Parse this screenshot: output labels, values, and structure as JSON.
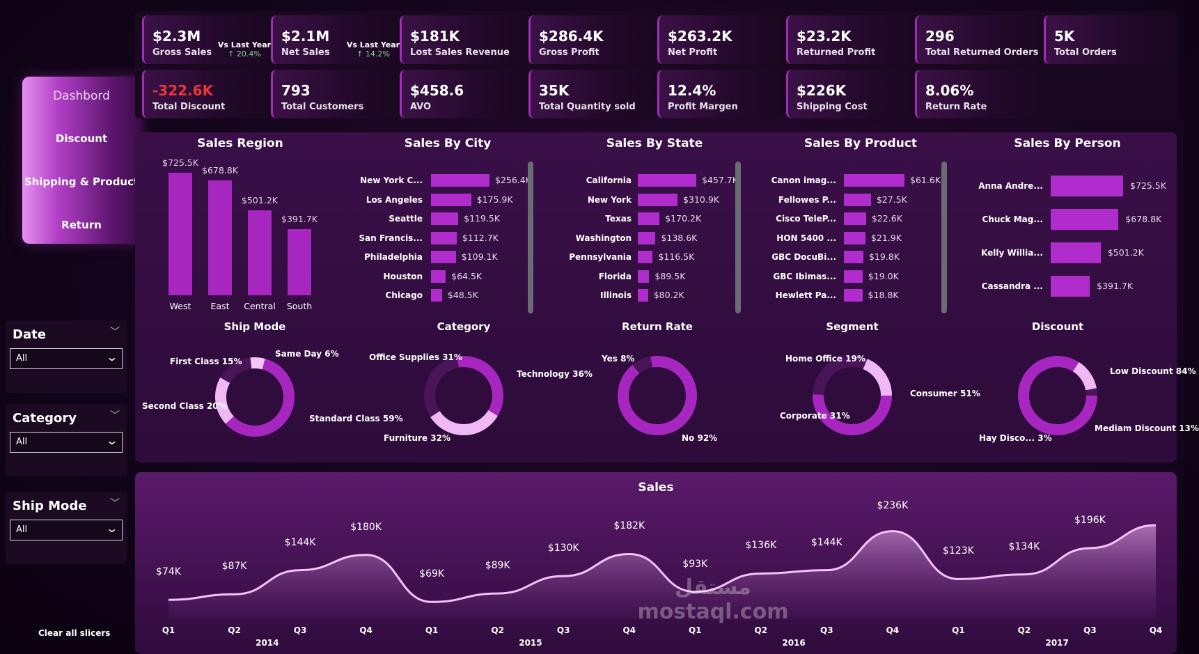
{
  "nav": {
    "items": [
      "Dashbord",
      "Discount",
      "Shipping & Product",
      "Return"
    ]
  },
  "slicers": [
    {
      "title": "Date",
      "value": "All"
    },
    {
      "title": "Category",
      "value": "All"
    },
    {
      "title": "Ship Mode",
      "value": "All"
    }
  ],
  "clear_label": "Clear all slicers",
  "kpis": [
    {
      "value": "$2.3M",
      "label": "Gross Sales",
      "cmp_label": "Vs Last Year",
      "cmp_change": "↑ 20.4%"
    },
    {
      "value": "$2.1M",
      "label": "Net Sales",
      "cmp_label": "Vs Last Year",
      "cmp_change": "↑ 14.2%"
    },
    {
      "value": "$181K",
      "label": "Lost Sales Revenue"
    },
    {
      "value": "$286.4K",
      "label": "Gross Profit"
    },
    {
      "value": "$263.2K",
      "label": "Net Profit"
    },
    {
      "value": "$23.2K",
      "label": "Returned Profit"
    },
    {
      "value": "296",
      "label": "Total Returned Orders"
    },
    {
      "value": "5K",
      "label": "Total Orders"
    },
    {
      "value": "-322.6K",
      "label": "Total Discount",
      "negative": true
    },
    {
      "value": "793",
      "label": "Total Customers"
    },
    {
      "value": "$458.6",
      "label": "AVO"
    },
    {
      "value": "35K",
      "label": "Total Quantity sold"
    },
    {
      "value": "12.4%",
      "label": "Profit Margen"
    },
    {
      "value": "$226K",
      "label": "Shipping Cost"
    },
    {
      "value": "8.06%",
      "label": "Return Rate"
    }
  ],
  "sales_region": {
    "title": "Sales Region",
    "chart_data": {
      "type": "bar",
      "categories": [
        "West",
        "East",
        "Central",
        "South"
      ],
      "values": [
        725.5,
        678.8,
        501.2,
        391.7
      ],
      "labels": [
        "$725.5K",
        "$678.8K",
        "$501.2K",
        "$391.7K"
      ]
    }
  },
  "sales_city": {
    "title": "Sales By City",
    "chart_data": {
      "type": "bar",
      "categories": [
        "New York C...",
        "Los Angeles",
        "Seattle",
        "San Francis...",
        "Philadelphia",
        "Houston",
        "Chicago"
      ],
      "values": [
        256.4,
        175.9,
        119.5,
        112.7,
        109.1,
        64.5,
        48.5
      ],
      "labels": [
        "$256.4K",
        "$175.9K",
        "$119.5K",
        "$112.7K",
        "$109.1K",
        "$64.5K",
        "$48.5K"
      ]
    }
  },
  "sales_state": {
    "title": "Sales By State",
    "chart_data": {
      "type": "bar",
      "categories": [
        "California",
        "New York",
        "Texas",
        "Washington",
        "Pennsylvania",
        "Florida",
        "Illinois"
      ],
      "values": [
        457.7,
        310.9,
        170.2,
        138.6,
        116.5,
        89.5,
        80.2
      ],
      "labels": [
        "$457.7K",
        "$310.9K",
        "$170.2K",
        "$138.6K",
        "$116.5K",
        "$89.5K",
        "$80.2K"
      ]
    }
  },
  "sales_product": {
    "title": "Sales By Product",
    "chart_data": {
      "type": "bar",
      "categories": [
        "Canon imag...",
        "Fellowes P...",
        "Cisco TeleP...",
        "HON 5400 ...",
        "GBC DocuBi...",
        "GBC Ibimas...",
        "Hewlett Pa..."
      ],
      "values": [
        61.6,
        27.5,
        22.6,
        21.9,
        19.8,
        19.0,
        18.8
      ],
      "labels": [
        "$61.6K",
        "$27.5K",
        "$22.6K",
        "$21.9K",
        "$19.8K",
        "$19.0K",
        "$18.8K"
      ]
    }
  },
  "sales_person": {
    "title": "Sales By Person",
    "chart_data": {
      "type": "bar",
      "categories": [
        "Anna Andre...",
        "Chuck Mag...",
        "Kelly Willia...",
        "Cassandra ..."
      ],
      "values": [
        725.5,
        678.8,
        501.2,
        391.7
      ],
      "labels": [
        "$725.5K",
        "$678.8K",
        "$501.2K",
        "$391.7K"
      ]
    }
  },
  "donuts": [
    {
      "title": "Ship Mode",
      "chart_data": {
        "type": "pie",
        "labels": [
          "Standard Class",
          "Second Class",
          "First Class",
          "Same Day"
        ],
        "values": [
          59,
          20,
          15,
          6
        ],
        "value_labels": [
          "59%",
          "20%",
          "15%",
          "6%"
        ]
      }
    },
    {
      "title": "Category",
      "chart_data": {
        "type": "pie",
        "labels": [
          "Technology",
          "Furniture",
          "Office Supplies"
        ],
        "values": [
          36,
          32,
          31
        ],
        "value_labels": [
          "36%",
          "32%",
          "31%"
        ]
      }
    },
    {
      "title": "Return Rate",
      "chart_data": {
        "type": "pie",
        "labels": [
          "No",
          "Yes"
        ],
        "values": [
          92,
          8
        ],
        "value_labels": [
          "92%",
          "8%"
        ]
      }
    },
    {
      "title": "Segment",
      "chart_data": {
        "type": "pie",
        "labels": [
          "Consumer",
          "Corporate",
          "Home Office"
        ],
        "values": [
          51,
          31,
          19
        ],
        "value_labels": [
          "51%",
          "31%",
          "19%"
        ]
      }
    },
    {
      "title": "Discount",
      "chart_data": {
        "type": "pie",
        "labels": [
          "Low Discount",
          "Mediam Discount",
          "Hay Disco..."
        ],
        "values": [
          84,
          13,
          3
        ],
        "value_labels": [
          "84%",
          "13%",
          "3%"
        ]
      }
    }
  ],
  "colors": {
    "accent": "#a726bf",
    "light": "#f0b8f5",
    "dark": "#4a1458"
  },
  "sales": {
    "title": "Sales",
    "chart_data": {
      "type": "area",
      "x": [
        "Q1",
        "Q2",
        "Q3",
        "Q4",
        "Q1",
        "Q2",
        "Q3",
        "Q4",
        "Q1",
        "Q2",
        "Q3",
        "Q4",
        "Q1",
        "Q2",
        "Q3",
        "Q4"
      ],
      "years": [
        "2014",
        "2015",
        "2016",
        "2017"
      ],
      "values": [
        74,
        87,
        144,
        180,
        69,
        89,
        130,
        182,
        93,
        136,
        144,
        236,
        123,
        134,
        196,
        250
      ],
      "labels": [
        "$74K",
        "$87K",
        "$144K",
        "$180K",
        "$69K",
        "$89K",
        "$130K",
        "$182K",
        "$93K",
        "$136K",
        "$144K",
        "$236K",
        "$123K",
        "$134K",
        "$196K",
        ""
      ]
    }
  },
  "watermark": "مستقل mostaql.com"
}
